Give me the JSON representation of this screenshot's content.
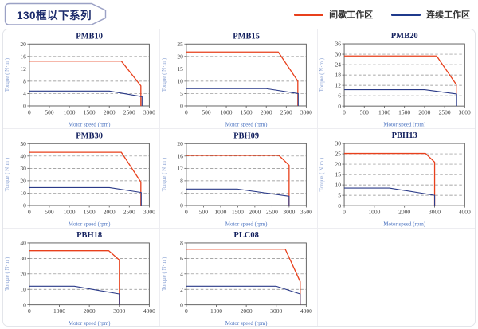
{
  "header": {
    "title": "130框以下系列",
    "legend": {
      "items": [
        {
          "name": "intermittent-work-zone",
          "label": "间歇工作区",
          "color": "#e8401c"
        },
        {
          "name": "continuous-work-zone",
          "label": "连续工作区",
          "color": "#1f3a8c"
        }
      ],
      "separator": "|"
    }
  },
  "colors": {
    "red_series": "#e8401c",
    "blue_series": "#2a3a88",
    "chart_title_text": "#13205e",
    "axis_label_blue": "#4a72c0",
    "badge_border": "#9ba1c5",
    "badge_text": "#1b2a6b"
  },
  "chart_data": [
    {
      "type": "line",
      "title": "PMB10",
      "xlabel": "Motor speed (rpm)",
      "ylabel": "Torque ( N·m )",
      "xlim": [
        0,
        3000
      ],
      "ylim": [
        0,
        20
      ],
      "xticks": [
        0,
        500,
        1000,
        1500,
        2000,
        2500,
        3000
      ],
      "yticks": [
        0,
        4,
        8,
        12,
        16,
        20
      ],
      "grid": "horizontal-dashed",
      "legend_position": "none",
      "series": [
        {
          "name": "间歇工作区",
          "color": "#e8401c",
          "width": 1.3,
          "points": [
            [
              0,
              14.5
            ],
            [
              2300,
              14.5
            ],
            [
              2790,
              6.5
            ],
            [
              2790,
              0
            ]
          ]
        },
        {
          "name": "连续工作区",
          "color": "#2a3a88",
          "width": 1.1,
          "points": [
            [
              0,
              4.8
            ],
            [
              2000,
              4.8
            ],
            [
              2820,
              3
            ],
            [
              2820,
              0
            ]
          ]
        }
      ]
    },
    {
      "type": "line",
      "title": "PMB15",
      "xlabel": "Motor speed (rpm)",
      "ylabel": "Torque ( N·m )",
      "xlim": [
        0,
        3000
      ],
      "ylim": [
        0,
        25
      ],
      "xticks": [
        0,
        500,
        1000,
        1500,
        2000,
        2500,
        3000
      ],
      "yticks": [
        0,
        5,
        10,
        15,
        20,
        25
      ],
      "grid": "horizontal-dashed",
      "legend_position": "none",
      "series": [
        {
          "name": "间歇工作区",
          "color": "#e8401c",
          "width": 1.3,
          "points": [
            [
              0,
              21.8
            ],
            [
              2300,
              21.8
            ],
            [
              2790,
              10
            ],
            [
              2790,
              0
            ]
          ]
        },
        {
          "name": "连续工作区",
          "color": "#2a3a88",
          "width": 1.1,
          "points": [
            [
              0,
              7
            ],
            [
              2000,
              7
            ],
            [
              2800,
              5
            ],
            [
              2800,
              0
            ]
          ]
        }
      ]
    },
    {
      "type": "line",
      "title": "PMB20",
      "xlabel": "Motor speed (rpm)",
      "ylabel": "Torque ( N·m )",
      "xlim": [
        0,
        3000
      ],
      "ylim": [
        0,
        36
      ],
      "xticks": [
        0,
        500,
        1000,
        1500,
        2000,
        2500,
        3000
      ],
      "yticks": [
        0,
        6,
        12,
        18,
        24,
        30,
        36
      ],
      "grid": "horizontal-dashed",
      "legend_position": "none",
      "series": [
        {
          "name": "间歇工作区",
          "color": "#e8401c",
          "width": 1.3,
          "points": [
            [
              0,
              29
            ],
            [
              2300,
              29
            ],
            [
              2790,
              12.5
            ],
            [
              2790,
              0
            ]
          ]
        },
        {
          "name": "连续工作区",
          "color": "#2a3a88",
          "width": 1.1,
          "points": [
            [
              0,
              9.5
            ],
            [
              2000,
              9.5
            ],
            [
              2800,
              7
            ],
            [
              2800,
              0
            ]
          ]
        }
      ]
    },
    {
      "type": "line",
      "title": "PMB30",
      "xlabel": "Motor speed (rpm)",
      "ylabel": "Torque ( N·m )",
      "xlim": [
        0,
        3000
      ],
      "ylim": [
        0,
        50
      ],
      "xticks": [
        0,
        500,
        1000,
        1500,
        2000,
        2500,
        3000
      ],
      "yticks": [
        0,
        10,
        20,
        30,
        40,
        50
      ],
      "grid": "horizontal-dashed",
      "legend_position": "none",
      "series": [
        {
          "name": "间歇工作区",
          "color": "#e8401c",
          "width": 1.3,
          "points": [
            [
              0,
              43
            ],
            [
              2300,
              43
            ],
            [
              2790,
              19
            ],
            [
              2790,
              0
            ]
          ]
        },
        {
          "name": "连续工作区",
          "color": "#2a3a88",
          "width": 1.1,
          "points": [
            [
              0,
              14.5
            ],
            [
              2000,
              14.5
            ],
            [
              2800,
              10.5
            ],
            [
              2800,
              0
            ]
          ]
        }
      ]
    },
    {
      "type": "line",
      "title": "PBH09",
      "xlabel": "Motor speed (rpm)",
      "ylabel": "Torque ( N·m )",
      "xlim": [
        0,
        3500
      ],
      "ylim": [
        0,
        20
      ],
      "xticks": [
        0,
        500,
        1000,
        1500,
        2000,
        2500,
        3000,
        3500
      ],
      "yticks": [
        0,
        4,
        8,
        12,
        16,
        20
      ],
      "grid": "horizontal-dashed",
      "legend_position": "none",
      "series": [
        {
          "name": "间歇工作区",
          "color": "#e8401c",
          "width": 1.3,
          "points": [
            [
              0,
              16.2
            ],
            [
              2700,
              16.2
            ],
            [
              3000,
              13
            ],
            [
              3000,
              0
            ]
          ]
        },
        {
          "name": "连续工作区",
          "color": "#2a3a88",
          "width": 1.1,
          "points": [
            [
              0,
              5.3
            ],
            [
              1500,
              5.3
            ],
            [
              3000,
              3
            ],
            [
              3000,
              0
            ]
          ]
        }
      ]
    },
    {
      "type": "line",
      "title": "PBH13",
      "xlabel": "Motor speed (rpm)",
      "ylabel": "Torque ( N·m )",
      "xlim": [
        0,
        4000
      ],
      "ylim": [
        0,
        30
      ],
      "xticks": [
        0,
        1000,
        2000,
        3000,
        4000
      ],
      "yticks": [
        0,
        5,
        10,
        15,
        20,
        25,
        30
      ],
      "grid": "horizontal-dashed",
      "legend_position": "none",
      "series": [
        {
          "name": "间歇工作区",
          "color": "#e8401c",
          "width": 1.3,
          "points": [
            [
              0,
              25.2
            ],
            [
              2700,
              25.2
            ],
            [
              3000,
              21
            ],
            [
              3000,
              0
            ]
          ]
        },
        {
          "name": "连续工作区",
          "color": "#2a3a88",
          "width": 1.1,
          "points": [
            [
              0,
              8.5
            ],
            [
              1500,
              8.5
            ],
            [
              3000,
              5
            ],
            [
              3000,
              0
            ]
          ]
        }
      ]
    },
    {
      "type": "line",
      "title": "PBH18",
      "xlabel": "Motor speed (rpm)",
      "ylabel": "Torque ( N·m )",
      "xlim": [
        0,
        4000
      ],
      "ylim": [
        0,
        40
      ],
      "xticks": [
        0,
        1000,
        2000,
        3000,
        4000
      ],
      "yticks": [
        0,
        10,
        20,
        30,
        40
      ],
      "grid": "horizontal-dashed",
      "legend_position": "none",
      "series": [
        {
          "name": "间歇工作区",
          "color": "#e8401c",
          "width": 1.3,
          "points": [
            [
              0,
              35
            ],
            [
              2650,
              35
            ],
            [
              3000,
              29
            ],
            [
              3000,
              0
            ]
          ]
        },
        {
          "name": "连续工作区",
          "color": "#2a3a88",
          "width": 1.1,
          "points": [
            [
              0,
              12
            ],
            [
              1500,
              12
            ],
            [
              3000,
              7
            ],
            [
              3000,
              0
            ]
          ]
        }
      ]
    },
    {
      "type": "line",
      "title": "PLC08",
      "xlabel": "Motor speed (rpm)",
      "ylabel": "Torque ( N·m )",
      "xlim": [
        0,
        4000
      ],
      "ylim": [
        0,
        8
      ],
      "xticks": [
        0,
        1000,
        2000,
        3000,
        4000
      ],
      "yticks": [
        0,
        2,
        4,
        6,
        8
      ],
      "grid": "horizontal-dashed",
      "legend_position": "none",
      "series": [
        {
          "name": "间歇工作区",
          "color": "#e8401c",
          "width": 1.3,
          "points": [
            [
              0,
              7.2
            ],
            [
              3300,
              7.2
            ],
            [
              3800,
              3
            ],
            [
              3800,
              0
            ]
          ]
        },
        {
          "name": "连续工作区",
          "color": "#2a3a88",
          "width": 1.1,
          "points": [
            [
              0,
              2.4
            ],
            [
              3000,
              2.4
            ],
            [
              3800,
              1.4
            ],
            [
              3800,
              0
            ]
          ]
        }
      ]
    }
  ]
}
